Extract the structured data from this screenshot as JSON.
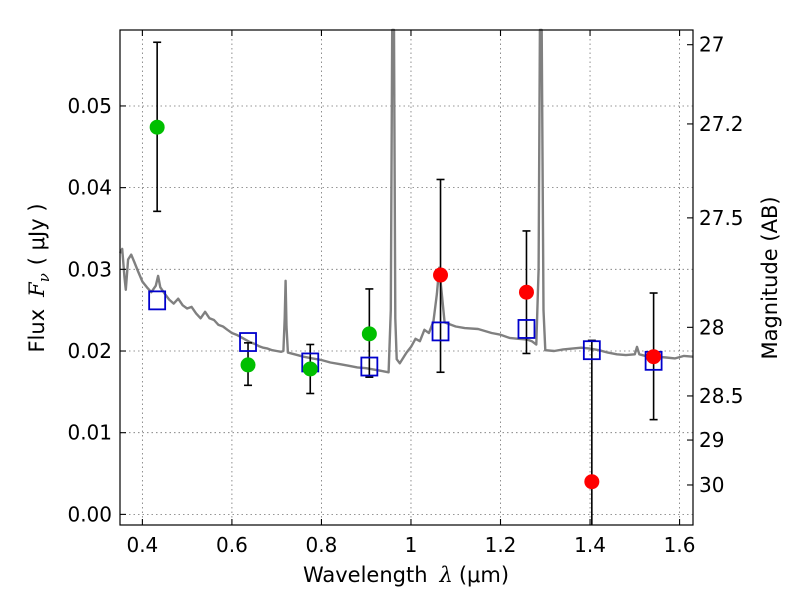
{
  "chart_data": {
    "type": "scatter",
    "xlabel_prefix": "Wavelength",
    "xlabel_symbol": "λ",
    "xlabel_unit": "(μm)",
    "ylabel_prefix": "Flux",
    "ylabel_symbol": "F",
    "ylabel_subscript": "ν",
    "ylabel_unit": "( μJy )",
    "y2label": "Magnitude (AB)",
    "xlim": [
      0.35,
      1.63
    ],
    "ylim": [
      -0.0013,
      0.0593
    ],
    "grid": true,
    "x_ticks": [
      0.4,
      0.6,
      0.8,
      1.0,
      1.2,
      1.4,
      1.6
    ],
    "x_tick_labels": [
      "0.4",
      "0.6",
      "0.8",
      "1",
      "1.2",
      "1.4",
      "1.6"
    ],
    "y_ticks": [
      0.0,
      0.01,
      0.02,
      0.03,
      0.04,
      0.05
    ],
    "y_tick_labels": [
      "0.00",
      "0.01",
      "0.02",
      "0.03",
      "0.04",
      "0.05"
    ],
    "mag_ticks": [
      {
        "label": "27",
        "flux": 0.0575
      },
      {
        "label": "27.2",
        "flux": 0.0478
      },
      {
        "label": "27.5",
        "flux": 0.0363
      },
      {
        "label": "28",
        "flux": 0.0229
      },
      {
        "label": "28.5",
        "flux": 0.0145
      },
      {
        "label": "29",
        "flux": 0.0091
      },
      {
        "label": "30",
        "flux": 0.0036
      }
    ],
    "series": [
      {
        "kind": "points",
        "marker": "circle",
        "color": "#00bf00",
        "points": [
          {
            "x": 0.433,
            "y": 0.0474,
            "ylo": 0.0371,
            "yhi": 0.0578
          },
          {
            "x": 0.636,
            "y": 0.0183,
            "ylo": 0.0158,
            "yhi": 0.021
          },
          {
            "x": 0.775,
            "y": 0.0178,
            "ylo": 0.0148,
            "yhi": 0.0208
          },
          {
            "x": 0.907,
            "y": 0.0221,
            "ylo": 0.0168,
            "yhi": 0.0276
          }
        ]
      },
      {
        "kind": "points",
        "marker": "circle",
        "color": "#ff0000",
        "points": [
          {
            "x": 1.066,
            "y": 0.0293,
            "ylo": 0.0174,
            "yhi": 0.041
          },
          {
            "x": 1.258,
            "y": 0.0272,
            "ylo": 0.0197,
            "yhi": 0.0347
          },
          {
            "x": 1.404,
            "y": 0.004,
            "ylo": -0.0013,
            "yhi": 0.0213
          },
          {
            "x": 1.542,
            "y": 0.0193,
            "ylo": 0.0116,
            "yhi": 0.0271
          }
        ]
      },
      {
        "kind": "points",
        "marker": "square",
        "color": "#0000cc",
        "points": [
          {
            "x": 0.433,
            "y": 0.0262
          },
          {
            "x": 0.636,
            "y": 0.0211
          },
          {
            "x": 0.775,
            "y": 0.0186
          },
          {
            "x": 0.907,
            "y": 0.0181
          },
          {
            "x": 1.066,
            "y": 0.0224
          },
          {
            "x": 1.258,
            "y": 0.0227
          },
          {
            "x": 1.404,
            "y": 0.0201
          },
          {
            "x": 1.542,
            "y": 0.0188
          }
        ]
      },
      {
        "kind": "line",
        "color": "#808080",
        "points": [
          [
            0.35,
            0.032
          ],
          [
            0.355,
            0.0325
          ],
          [
            0.36,
            0.029
          ],
          [
            0.363,
            0.0275
          ],
          [
            0.368,
            0.0312
          ],
          [
            0.375,
            0.0318
          ],
          [
            0.382,
            0.0309
          ],
          [
            0.39,
            0.0298
          ],
          [
            0.4,
            0.0285
          ],
          [
            0.41,
            0.0278
          ],
          [
            0.42,
            0.0272
          ],
          [
            0.43,
            0.028
          ],
          [
            0.435,
            0.0292
          ],
          [
            0.44,
            0.0278
          ],
          [
            0.45,
            0.027
          ],
          [
            0.46,
            0.0263
          ],
          [
            0.47,
            0.0258
          ],
          [
            0.48,
            0.0264
          ],
          [
            0.49,
            0.0256
          ],
          [
            0.5,
            0.0252
          ],
          [
            0.51,
            0.0254
          ],
          [
            0.52,
            0.0246
          ],
          [
            0.53,
            0.024
          ],
          [
            0.54,
            0.0248
          ],
          [
            0.55,
            0.024
          ],
          [
            0.56,
            0.0238
          ],
          [
            0.57,
            0.0232
          ],
          [
            0.58,
            0.023
          ],
          [
            0.59,
            0.0226
          ],
          [
            0.6,
            0.0222
          ],
          [
            0.61,
            0.022
          ],
          [
            0.62,
            0.0217
          ],
          [
            0.63,
            0.0214
          ],
          [
            0.64,
            0.0211
          ],
          [
            0.65,
            0.0209
          ],
          [
            0.66,
            0.0206
          ],
          [
            0.67,
            0.0204
          ],
          [
            0.68,
            0.0203
          ],
          [
            0.69,
            0.0201
          ],
          [
            0.7,
            0.02
          ],
          [
            0.71,
            0.0199
          ],
          [
            0.715,
            0.02
          ],
          [
            0.718,
            0.024
          ],
          [
            0.72,
            0.0286
          ],
          [
            0.722,
            0.023
          ],
          [
            0.725,
            0.0198
          ],
          [
            0.74,
            0.0196
          ],
          [
            0.76,
            0.0193
          ],
          [
            0.78,
            0.0191
          ],
          [
            0.8,
            0.0189
          ],
          [
            0.82,
            0.0186
          ],
          [
            0.84,
            0.0184
          ],
          [
            0.86,
            0.0182
          ],
          [
            0.88,
            0.018
          ],
          [
            0.9,
            0.0179
          ],
          [
            0.92,
            0.0177
          ],
          [
            0.94,
            0.0175
          ],
          [
            0.95,
            0.0174
          ],
          [
            0.955,
            0.025
          ],
          [
            0.958,
            0.0593
          ],
          [
            0.962,
            0.0593
          ],
          [
            0.965,
            0.024
          ],
          [
            0.968,
            0.019
          ],
          [
            0.975,
            0.0185
          ],
          [
            0.99,
            0.0198
          ],
          [
            1.0,
            0.0205
          ],
          [
            1.01,
            0.0215
          ],
          [
            1.02,
            0.0212
          ],
          [
            1.03,
            0.0226
          ],
          [
            1.04,
            0.0222
          ],
          [
            1.05,
            0.0236
          ],
          [
            1.058,
            0.027
          ],
          [
            1.063,
            0.0302
          ],
          [
            1.068,
            0.0275
          ],
          [
            1.075,
            0.0235
          ],
          [
            1.1,
            0.023
          ],
          [
            1.12,
            0.0228
          ],
          [
            1.15,
            0.0227
          ],
          [
            1.18,
            0.0222
          ],
          [
            1.2,
            0.022
          ],
          [
            1.22,
            0.0216
          ],
          [
            1.24,
            0.0215
          ],
          [
            1.26,
            0.0214
          ],
          [
            1.27,
            0.0212
          ],
          [
            1.28,
            0.0208
          ],
          [
            1.285,
            0.03
          ],
          [
            1.288,
            0.0593
          ],
          [
            1.292,
            0.0593
          ],
          [
            1.296,
            0.025
          ],
          [
            1.3,
            0.0201
          ],
          [
            1.32,
            0.02
          ],
          [
            1.34,
            0.0202
          ],
          [
            1.36,
            0.0203
          ],
          [
            1.38,
            0.0204
          ],
          [
            1.4,
            0.0203
          ],
          [
            1.42,
            0.0201
          ],
          [
            1.44,
            0.0198
          ],
          [
            1.46,
            0.0196
          ],
          [
            1.48,
            0.0195
          ],
          [
            1.5,
            0.0196
          ],
          [
            1.505,
            0.0205
          ],
          [
            1.51,
            0.0196
          ],
          [
            1.53,
            0.0193
          ],
          [
            1.55,
            0.0193
          ],
          [
            1.57,
            0.0192
          ],
          [
            1.59,
            0.0191
          ],
          [
            1.61,
            0.0194
          ],
          [
            1.63,
            0.0193
          ]
        ]
      }
    ]
  }
}
